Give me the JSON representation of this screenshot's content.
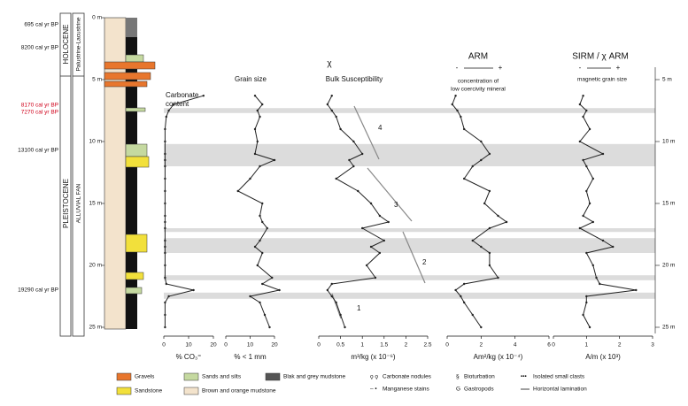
{
  "depth_axis": {
    "ylim": [
      0,
      25
    ],
    "yticks": [
      {
        "value": 0,
        "label": "0 m"
      },
      {
        "value": 5,
        "label": "5 m"
      },
      {
        "value": 10,
        "label": "10 m"
      },
      {
        "value": 15,
        "label": "15 m"
      },
      {
        "value": 20,
        "label": "20 m"
      },
      {
        "value": 25,
        "label": "25 m"
      }
    ],
    "right_yticks": [
      {
        "value": 5,
        "label": "5 m"
      },
      {
        "value": 10,
        "label": "10 m"
      },
      {
        "value": 15,
        "label": "15 m"
      },
      {
        "value": 20,
        "label": "20 m"
      },
      {
        "value": 25,
        "label": "25 m"
      }
    ]
  },
  "highlight_bands": [
    [
      7.3,
      7.7
    ],
    [
      10.2,
      12.0
    ],
    [
      17.0,
      17.3
    ],
    [
      17.8,
      19.0
    ],
    [
      20.8,
      21.2
    ],
    [
      22.2,
      22.7
    ]
  ],
  "stratigraphy": {
    "epochs": [
      "HOLOCENE",
      "PLEISTOCENE"
    ],
    "facies": [
      "Palustrine-Lacustrine",
      "ALLUVIAL FAN"
    ],
    "ages": [
      "695 cal yr BP",
      "8200 cal yr BP",
      "8170 cal yr BP",
      "7270 cal yr BP",
      "13100 cal yr BP",
      "19290 cal yr BP"
    ]
  },
  "trend_labels": [
    "1",
    "2",
    "3",
    "4"
  ],
  "chart_data": [
    {
      "type": "line",
      "title": [
        "Carbonate",
        "content"
      ],
      "xlabel": "% CO₃⁼",
      "xlim": [
        0,
        20
      ],
      "xticks": [
        0,
        10,
        20
      ],
      "color": "#222",
      "y": [
        6.3,
        7,
        7.5,
        8,
        9,
        10,
        11,
        11.5,
        12,
        13,
        14,
        15,
        16,
        16.5,
        17,
        18,
        18.5,
        19,
        20,
        21,
        21.5,
        22,
        22.5,
        23,
        24,
        25
      ],
      "values": [
        16,
        4,
        2,
        1,
        0.5,
        0.5,
        0.5,
        0.5,
        0.5,
        0.5,
        0.5,
        0.5,
        0.5,
        0.5,
        0.5,
        0.5,
        0.5,
        0.5,
        0.5,
        0.5,
        1,
        12,
        2,
        0.5,
        0.5,
        0.5
      ]
    },
    {
      "type": "line",
      "title": [
        "Grain size"
      ],
      "xlabel": "% < 1 mm",
      "xlim": [
        0,
        20
      ],
      "xticks": [
        0,
        10,
        20
      ],
      "color": "#222",
      "y": [
        6.3,
        7,
        7.5,
        8,
        9,
        10,
        11,
        11.5,
        12,
        13,
        14,
        15,
        16,
        16.5,
        17,
        18,
        18.5,
        19,
        20,
        21,
        21.5,
        22,
        22.5,
        23,
        24,
        25
      ],
      "values": [
        12,
        15,
        13,
        14,
        12,
        13,
        12,
        20,
        14,
        10,
        5,
        15,
        14,
        15,
        17,
        14,
        12,
        15,
        13,
        19,
        15,
        22,
        10,
        14,
        16,
        18
      ]
    },
    {
      "type": "line",
      "symbol": "χ",
      "title": [
        "Bulk Susceptibility"
      ],
      "xlabel": "m³/kg (x 10⁻⁶)",
      "xlim": [
        0,
        2.5
      ],
      "xticks": [
        0,
        0.5,
        1,
        1.5,
        2,
        2.5
      ],
      "color": "#222",
      "y": [
        6.3,
        7,
        7.5,
        8,
        9,
        10,
        11,
        11.5,
        12,
        13,
        14,
        15,
        16,
        16.5,
        17,
        18,
        18.5,
        19,
        20,
        21,
        21.5,
        22,
        22.5,
        23,
        24,
        25
      ],
      "values": [
        0.3,
        0.2,
        0.3,
        0.4,
        0.5,
        0.8,
        1.0,
        0.7,
        0.8,
        0.4,
        0.9,
        1.2,
        1.4,
        1.6,
        1.0,
        1.5,
        1.2,
        1.4,
        1.1,
        1.3,
        0.3,
        0.2,
        0.3,
        0.4,
        0.5,
        0.6
      ]
    },
    {
      "type": "line",
      "symbol": "ARM",
      "minus": "-",
      "plus": "+",
      "title": [
        "concentration of",
        "low coercivity mineral"
      ],
      "xlabel": "Am²/kg (x 10⁻⁴)",
      "xlim": [
        0,
        6
      ],
      "xticks": [
        0,
        2,
        4,
        6
      ],
      "color": "#222",
      "y": [
        6.3,
        7,
        7.5,
        8,
        9,
        10,
        11,
        11.5,
        12,
        13,
        14,
        15,
        16,
        16.5,
        17,
        18,
        18.5,
        19,
        20,
        21,
        21.5,
        22,
        22.5,
        23,
        24,
        25
      ],
      "values": [
        0.5,
        0.3,
        0.6,
        0.8,
        1.0,
        2.0,
        2.5,
        2.0,
        1.5,
        1.0,
        2.5,
        2.2,
        3.0,
        3.5,
        2.5,
        1.5,
        2.0,
        2.5,
        2.5,
        3.0,
        1.0,
        0.5,
        0.8,
        1.0,
        1.5,
        2.0
      ]
    },
    {
      "type": "line",
      "symbol": "SIRM / χ ARM",
      "minus": "-",
      "plus": "+",
      "title": [
        "magnetic grain size"
      ],
      "xlabel": "A/m (x 10³)",
      "xlim": [
        0,
        3
      ],
      "xticks": [
        0,
        1,
        2,
        3
      ],
      "color": "#222",
      "y": [
        6.3,
        7,
        7.5,
        8,
        9,
        10,
        11,
        11.5,
        12,
        13,
        14,
        15,
        16,
        16.5,
        17,
        18,
        18.5,
        19,
        20,
        21,
        21.5,
        22,
        22.5,
        23,
        24,
        25
      ],
      "values": [
        0.9,
        0.8,
        1.0,
        0.9,
        1.1,
        0.8,
        1.5,
        0.9,
        1.0,
        1.2,
        1.0,
        1.1,
        0.9,
        1.2,
        0.8,
        1.5,
        1.8,
        1.0,
        1.2,
        1.3,
        1.4,
        2.5,
        1.0,
        1.0,
        0.9,
        1.1
      ]
    }
  ],
  "legend": [
    "Gravels",
    "Sandstone",
    "Sands and silts",
    "Brown and orange mudstone",
    "Blak and grey mudstone",
    "Carbonate nodules",
    "Manganese stains",
    "Bioturbation",
    "Gastropods",
    "Isolated small clasts",
    "Horizontal lamination"
  ]
}
